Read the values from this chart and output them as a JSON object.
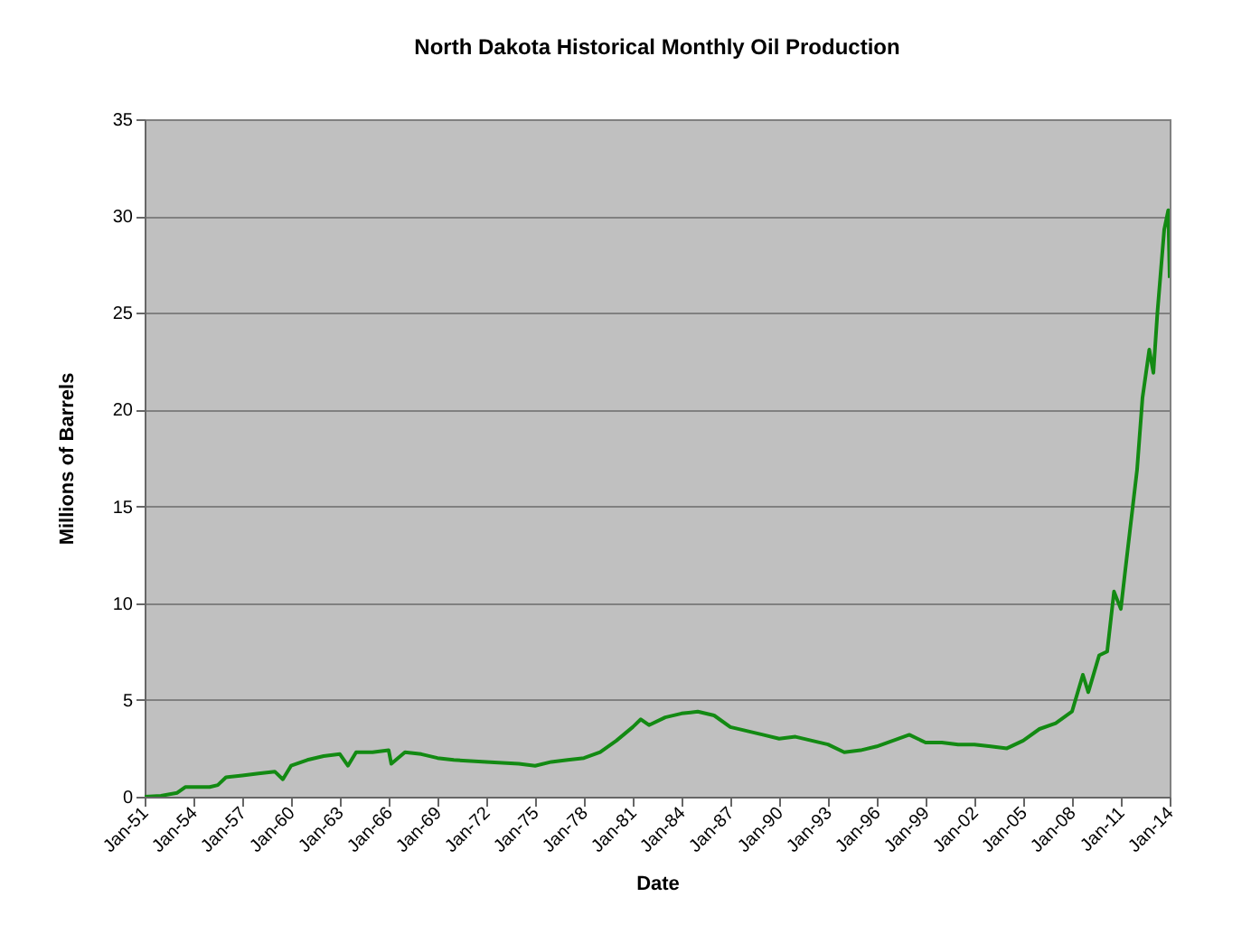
{
  "chart_data": {
    "type": "line",
    "title": "North Dakota Historical Monthly Oil Production",
    "xlabel": "Date",
    "ylabel": "Millions of Barrels",
    "x": [
      "1951-01",
      "1952-01",
      "1953-01",
      "1953-07",
      "1955-01",
      "1955-07",
      "1956-01",
      "1957-01",
      "1958-01",
      "1959-01",
      "1959-07",
      "1960-01",
      "1961-01",
      "1962-01",
      "1963-01",
      "1963-07",
      "1964-01",
      "1965-01",
      "1966-01",
      "1966-03",
      "1967-01",
      "1968-01",
      "1969-01",
      "1970-01",
      "1972-01",
      "1974-01",
      "1975-01",
      "1976-01",
      "1977-01",
      "1978-01",
      "1979-01",
      "1980-01",
      "1981-01",
      "1981-07",
      "1982-01",
      "1983-01",
      "1984-01",
      "1985-01",
      "1986-01",
      "1987-01",
      "1988-01",
      "1989-01",
      "1990-01",
      "1991-01",
      "1992-01",
      "1993-01",
      "1994-01",
      "1995-01",
      "1996-01",
      "1997-01",
      "1998-01",
      "1999-01",
      "2000-01",
      "2001-01",
      "2002-01",
      "2003-01",
      "2004-01",
      "2005-01",
      "2006-01",
      "2007-01",
      "2008-01",
      "2008-09",
      "2009-01",
      "2009-09",
      "2010-03",
      "2010-08",
      "2011-01",
      "2011-04",
      "2012-01",
      "2012-05",
      "2012-10",
      "2013-01",
      "2013-04",
      "2013-09",
      "2013-12",
      "2014-01"
    ],
    "series": [
      {
        "color": "#138a13",
        "values": [
          0,
          0.05,
          0.2,
          0.5,
          0.5,
          0.6,
          1.0,
          1.1,
          1.2,
          1.3,
          0.9,
          1.6,
          1.9,
          2.1,
          2.2,
          1.6,
          2.3,
          2.3,
          2.4,
          1.7,
          2.3,
          2.2,
          2.0,
          1.9,
          1.8,
          1.7,
          1.6,
          1.8,
          1.9,
          2.0,
          2.3,
          2.9,
          3.6,
          4.0,
          3.7,
          4.1,
          4.3,
          4.4,
          4.2,
          3.6,
          3.4,
          3.2,
          3.0,
          3.1,
          2.9,
          2.7,
          2.3,
          2.4,
          2.6,
          2.9,
          3.2,
          2.8,
          2.8,
          2.7,
          2.7,
          2.6,
          2.5,
          2.9,
          3.5,
          3.8,
          4.4,
          6.3,
          5.4,
          7.3,
          7.5,
          10.6,
          9.7,
          11.5,
          16.9,
          20.6,
          23.1,
          21.9,
          25.0,
          29.3,
          30.3,
          26.8
        ]
      }
    ],
    "xlim": [
      "1951-01",
      "2014-01"
    ],
    "xticks": [
      {
        "value": "1951-01",
        "label": "Jan-51"
      },
      {
        "value": "1954-01",
        "label": "Jan-54"
      },
      {
        "value": "1957-01",
        "label": "Jan-57"
      },
      {
        "value": "1960-01",
        "label": "Jan-60"
      },
      {
        "value": "1963-01",
        "label": "Jan-63"
      },
      {
        "value": "1966-01",
        "label": "Jan-66"
      },
      {
        "value": "1969-01",
        "label": "Jan-69"
      },
      {
        "value": "1972-01",
        "label": "Jan-72"
      },
      {
        "value": "1975-01",
        "label": "Jan-75"
      },
      {
        "value": "1978-01",
        "label": "Jan-78"
      },
      {
        "value": "1981-01",
        "label": "Jan-81"
      },
      {
        "value": "1984-01",
        "label": "Jan-84"
      },
      {
        "value": "1987-01",
        "label": "Jan-87"
      },
      {
        "value": "1990-01",
        "label": "Jan-90"
      },
      {
        "value": "1993-01",
        "label": "Jan-93"
      },
      {
        "value": "1996-01",
        "label": "Jan-96"
      },
      {
        "value": "1999-01",
        "label": "Jan-99"
      },
      {
        "value": "2002-01",
        "label": "Jan-02"
      },
      {
        "value": "2005-01",
        "label": "Jan-05"
      },
      {
        "value": "2008-01",
        "label": "Jan-08"
      },
      {
        "value": "2011-01",
        "label": "Jan-11"
      },
      {
        "value": "2014-01",
        "label": "Jan-14"
      }
    ],
    "ylim": [
      0,
      35
    ],
    "yticks": [
      0,
      5,
      10,
      15,
      20,
      25,
      30,
      35
    ],
    "grid": "y"
  }
}
